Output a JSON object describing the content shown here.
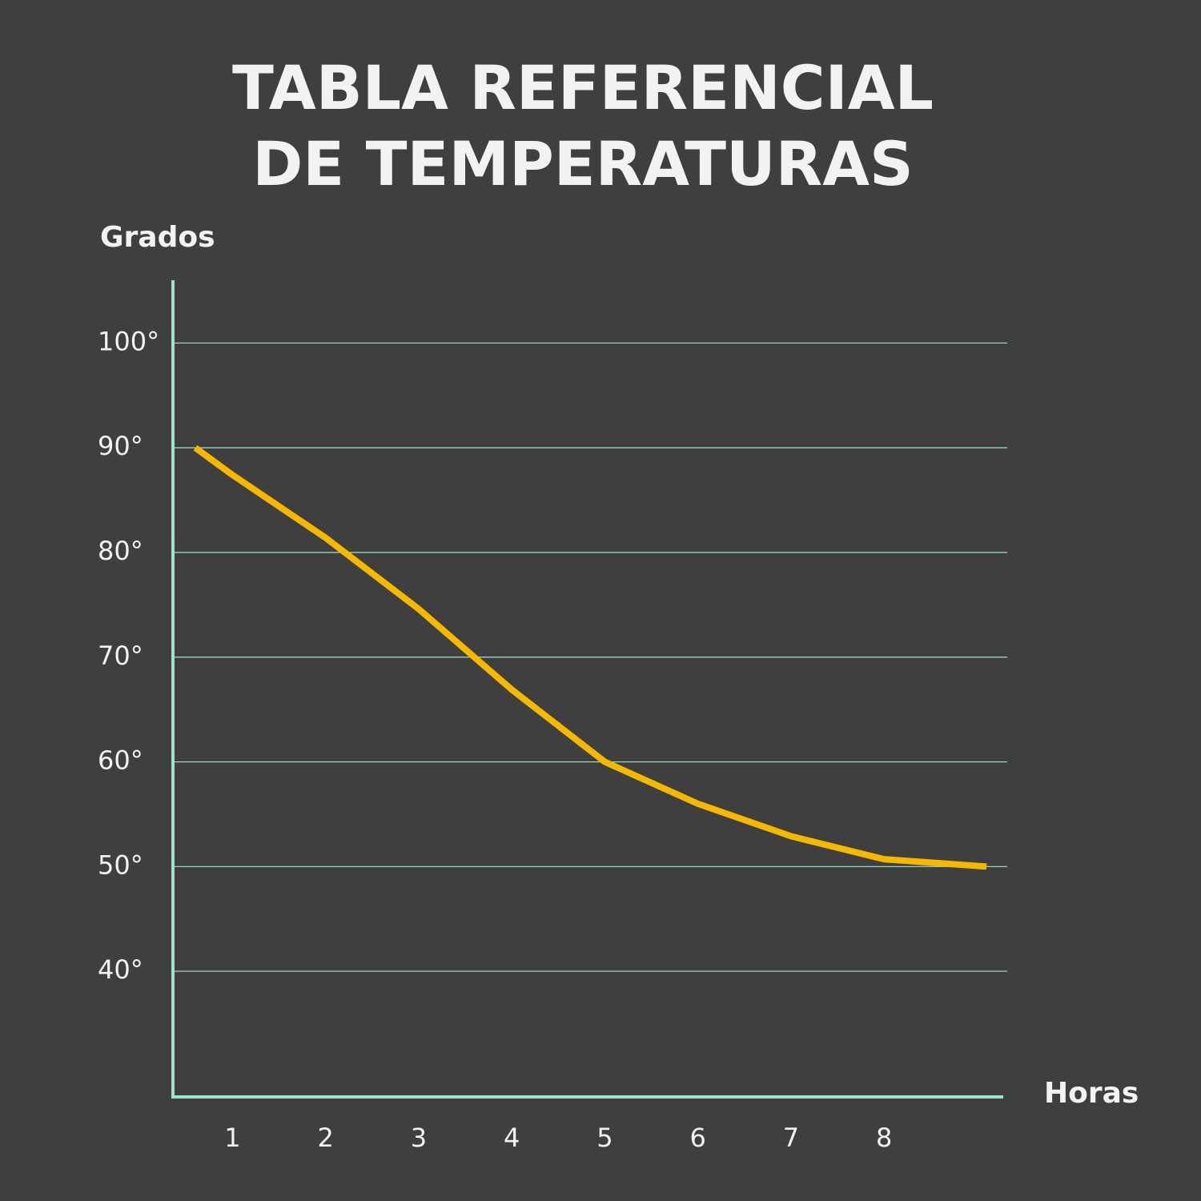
{
  "chart_data": {
    "type": "line",
    "title": [
      "TABLA REFERENCIAL",
      "DE TEMPERATURAS"
    ],
    "y_label": "Grados",
    "x_label": "Horas",
    "x": [
      0.6,
      1,
      2,
      3,
      4,
      5,
      6,
      7,
      8,
      9.1
    ],
    "series": [
      {
        "color": "#f5b800",
        "values": [
          90,
          87.4,
          81.4,
          74.6,
          66.9,
          60,
          56,
          52.9,
          50.7,
          50
        ]
      }
    ],
    "xlim": [
      0.36,
      9.28
    ],
    "xticks": [
      1,
      2,
      3,
      4,
      5,
      6,
      7,
      8
    ],
    "ylim": [
      28,
      106
    ],
    "yticks": [
      {
        "value": 40,
        "label": "40°"
      },
      {
        "value": 50,
        "label": "50°"
      },
      {
        "value": 60,
        "label": "60°"
      },
      {
        "value": 70,
        "label": "70°"
      },
      {
        "value": 80,
        "label": "80°"
      },
      {
        "value": 90,
        "label": "90°"
      },
      {
        "value": 100,
        "label": "100°"
      }
    ],
    "grid": true,
    "axis_color": "#9fe3cc"
  }
}
